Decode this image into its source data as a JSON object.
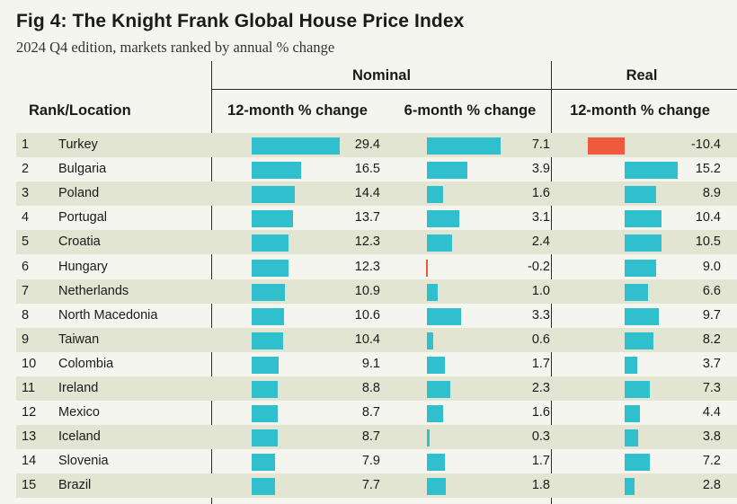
{
  "title": "Fig 4: The Knight Frank Global House Price Index",
  "subtitle": "2024 Q4 edition, markets ranked by annual % change",
  "headers": {
    "rank_location": "Rank/Location",
    "nominal": "Nominal",
    "real": "Real",
    "col_nominal_12m": "12-month % change",
    "col_nominal_6m": "6-month % change",
    "col_real_12m": "12-month % change"
  },
  "colors": {
    "positive_bar": "#30bfcc",
    "negative_bar": "#f05a3c",
    "row_shade": "#e3e5d3"
  },
  "chart_data": {
    "type": "table",
    "title": "Fig 4: The Knight Frank Global House Price Index",
    "subtitle": "2024 Q4 edition, markets ranked by annual % change",
    "columns": [
      "Rank",
      "Location",
      "Nominal 12-month % change",
      "Nominal 6-month % change",
      "Real 12-month % change"
    ],
    "rows": [
      {
        "rank": "1",
        "location": "Turkey",
        "nominal_12m": "29.4",
        "nominal_6m": "7.1",
        "real_12m": "-10.4"
      },
      {
        "rank": "2",
        "location": "Bulgaria",
        "nominal_12m": "16.5",
        "nominal_6m": "3.9",
        "real_12m": "15.2"
      },
      {
        "rank": "3",
        "location": "Poland",
        "nominal_12m": "14.4",
        "nominal_6m": "1.6",
        "real_12m": "8.9"
      },
      {
        "rank": "4",
        "location": "Portugal",
        "nominal_12m": "13.7",
        "nominal_6m": "3.1",
        "real_12m": "10.4"
      },
      {
        "rank": "5",
        "location": "Croatia",
        "nominal_12m": "12.3",
        "nominal_6m": "2.4",
        "real_12m": "10.5"
      },
      {
        "rank": "6",
        "location": "Hungary",
        "nominal_12m": "12.3",
        "nominal_6m": "-0.2",
        "real_12m": "9.0"
      },
      {
        "rank": "7",
        "location": "Netherlands",
        "nominal_12m": "10.9",
        "nominal_6m": "1.0",
        "real_12m": "6.6"
      },
      {
        "rank": "8",
        "location": "North Macedonia",
        "nominal_12m": "10.6",
        "nominal_6m": "3.3",
        "real_12m": "9.7"
      },
      {
        "rank": "9",
        "location": "Taiwan",
        "nominal_12m": "10.4",
        "nominal_6m": "0.6",
        "real_12m": "8.2"
      },
      {
        "rank": "10",
        "location": "Colombia",
        "nominal_12m": "9.1",
        "nominal_6m": "1.7",
        "real_12m": "3.7"
      },
      {
        "rank": "11",
        "location": "Ireland",
        "nominal_12m": "8.8",
        "nominal_6m": "2.3",
        "real_12m": "7.3"
      },
      {
        "rank": "12",
        "location": "Mexico",
        "nominal_12m": "8.7",
        "nominal_6m": "1.6",
        "real_12m": "4.4"
      },
      {
        "rank": "13",
        "location": "Iceland",
        "nominal_12m": "8.7",
        "nominal_6m": "0.3",
        "real_12m": "3.8"
      },
      {
        "rank": "14",
        "location": "Slovenia",
        "nominal_12m": "7.9",
        "nominal_6m": "1.7",
        "real_12m": "7.2"
      },
      {
        "rank": "15",
        "location": "Brazil",
        "nominal_12m": "7.7",
        "nominal_6m": "1.8",
        "real_12m": "2.8"
      }
    ]
  }
}
